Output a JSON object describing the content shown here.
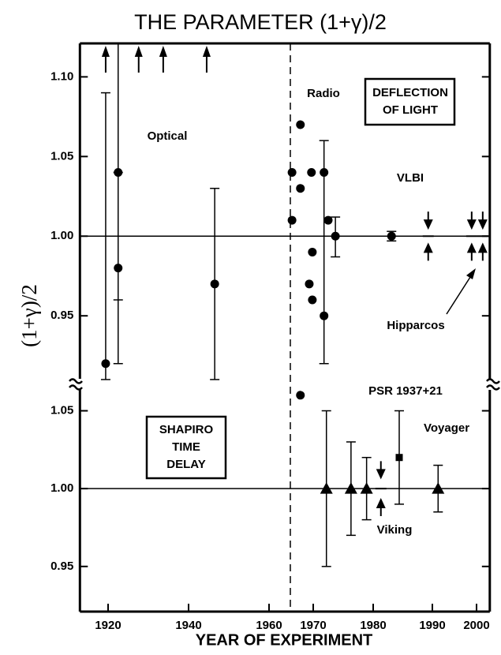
{
  "title": "THE PARAMETER (1+γ)/2",
  "y_label": "(1+γ)/2",
  "x_axis": {
    "label": "YEAR OF EXPERIMENT",
    "xlim": [
      1913,
      2003
    ],
    "xticks": [
      1920,
      1940,
      1960,
      1970,
      1980,
      1990,
      2000
    ]
  },
  "chart_data": [
    {
      "type": "scatter",
      "box_label": [
        "DEFLECTION",
        "OF LIGHT"
      ],
      "color": "#000",
      "ylim": [
        0.907,
        1.121
      ],
      "yticks": [
        0.95,
        {
          "value": 1,
          "label": "1.00"
        },
        1.05,
        {
          "value": 1.1,
          "label": "1.10"
        }
      ],
      "reference_line": 1,
      "series": [
        {
          "name": "Optical",
          "marker": "circle",
          "x": [
            1919.4,
            1922.5,
            1922.5,
            1946.5
          ],
          "values": [
            0.92,
            0.98,
            1.04,
            0.97
          ],
          "low": [
            0.91,
            0.92,
            0.96,
            0.91
          ],
          "high": [
            1.09,
            1.121,
            1.04,
            1.03
          ],
          "lower_limit_x": [
            1919.4,
            1927.6,
            1933.7,
            1944.5
          ]
        },
        {
          "name": "Radio",
          "marker": "circle",
          "x": [
            1965.2,
            1965.2,
            1967.1,
            1967.1,
            1969.6,
            1969.1,
            1969.8,
            1969.8,
            1971.8,
            1971.8,
            1972.5,
            1973.7
          ],
          "values": [
            1.04,
            1.01,
            1.07,
            1.03,
            1.04,
            0.97,
            0.99,
            0.96,
            1.04,
            0.95,
            1.01,
            1.0
          ],
          "low": [
            null,
            null,
            null,
            null,
            null,
            null,
            null,
            null,
            0.92,
            null,
            null,
            0.987
          ],
          "high": [
            null,
            null,
            null,
            null,
            null,
            null,
            null,
            null,
            1.06,
            null,
            null,
            1.012
          ]
        },
        {
          "name": "VLBI",
          "marker": [
            "circle",
            "arrows"
          ],
          "x": [
            1983.1,
            1989.3
          ],
          "values": [
            1.0,
            1.0
          ],
          "low": [
            0.997,
            0.996
          ],
          "high": [
            1.003,
            1.004
          ]
        },
        {
          "name": "Hipparcos",
          "marker": "arrows",
          "x": [
            1998.9,
            2001.4
          ],
          "values": [
            1.0,
            1.0
          ],
          "low": [
            0.996,
            0.996
          ],
          "high": [
            1.004,
            1.004
          ]
        }
      ]
    },
    {
      "type": "scatter",
      "box_label": [
        "SHAPIRO",
        "TIME",
        "DELAY"
      ],
      "color": "#000",
      "ylim": [
        0.921,
        1.067
      ],
      "yticks": [
        0.95,
        {
          "value": 1,
          "label": "1.00"
        },
        1.05
      ],
      "reference_line": 1,
      "series": [
        {
          "marker": [
            "circle",
            "triangle",
            "triangle",
            "triangle"
          ],
          "x": [
            1967.1,
            1972.2,
            1976.3,
            1978.9
          ],
          "values": [
            1.06,
            1.0,
            1.0,
            1.0
          ],
          "low": [
            null,
            0.95,
            0.97,
            0.98
          ],
          "high": [
            null,
            1.05,
            1.03,
            1.02
          ]
        },
        {
          "name": "Viking",
          "marker": "arrows",
          "x": [
            1981.3
          ],
          "values": [
            1.0
          ],
          "low": [
            0.994
          ],
          "high": [
            1.006
          ]
        },
        {
          "name": "PSR 1937+21",
          "marker": "square",
          "x": [
            1984.4
          ],
          "values": [
            1.02
          ],
          "low": [
            0.99
          ],
          "high": [
            1.05
          ]
        },
        {
          "name": "Voyager",
          "marker": "triangle",
          "x": [
            1991.3
          ],
          "values": [
            1.0
          ],
          "low": [
            0.985
          ],
          "high": [
            1.015
          ]
        }
      ]
    }
  ]
}
